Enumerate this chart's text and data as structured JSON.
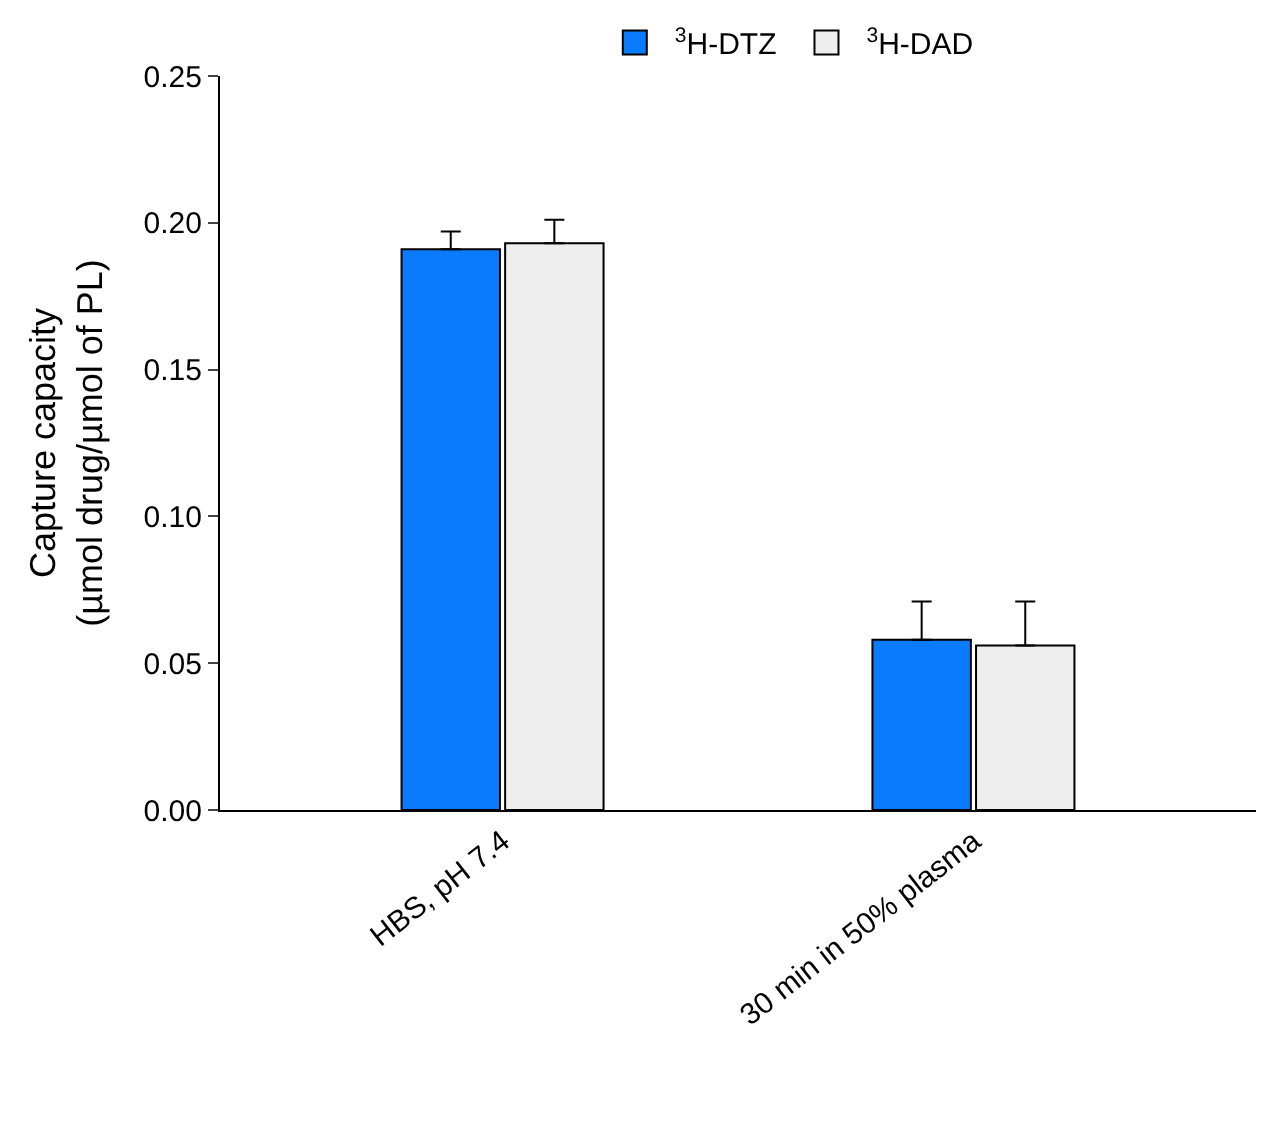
{
  "chart_data": {
    "type": "bar",
    "ylabel": "Capture capacity\n(µmol drug/µmol of PL)",
    "categories": [
      "HBS, pH 7.4",
      "30 min in 50% plasma"
    ],
    "series": [
      {
        "name": "$^{3}$H-DTZ",
        "color": "#0a7bff",
        "values": [
          0.191,
          0.058
        ],
        "errors": [
          [
            0.191,
            0.197
          ],
          [
            0.058,
            0.071
          ]
        ]
      },
      {
        "name": "$^{3}$H-DAD",
        "color": "#eeeeee",
        "values": [
          0.193,
          0.056
        ],
        "errors": [
          [
            0.193,
            0.201
          ],
          [
            0.056,
            0.071
          ]
        ]
      }
    ],
    "ylim": [
      0,
      0.25
    ],
    "yticks": [
      {
        "value": 0,
        "label": "0.00"
      },
      {
        "value": 0.05,
        "label": "0.05"
      },
      {
        "value": 0.1,
        "label": "0.10"
      },
      {
        "value": 0.15,
        "label": "0.15"
      },
      {
        "value": 0.2,
        "label": "0.20"
      },
      {
        "value": 0.25,
        "label": "0.25"
      }
    ],
    "legend": "top"
  }
}
